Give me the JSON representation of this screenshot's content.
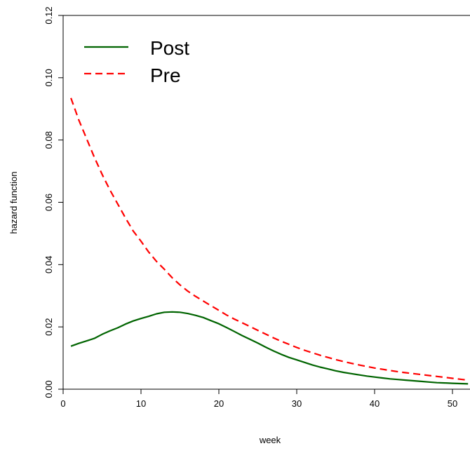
{
  "chart_data": {
    "type": "line",
    "title": "",
    "xlabel": "week",
    "ylabel": "hazard function",
    "xlim": [
      0,
      52
    ],
    "ylim": [
      0,
      0.12
    ],
    "x_ticks": [
      0,
      10,
      20,
      30,
      40,
      50
    ],
    "y_ticks": [
      0.0,
      0.02,
      0.04,
      0.06,
      0.08,
      0.1,
      0.12
    ],
    "x_tick_labels": [
      "0",
      "10",
      "20",
      "30",
      "40",
      "50"
    ],
    "y_tick_labels": [
      "0.00",
      "0.02",
      "0.04",
      "0.06",
      "0.08",
      "0.10",
      "0.12"
    ],
    "grid": false,
    "legend_position": "top-left",
    "series": [
      {
        "name": "Post",
        "color": "#006400",
        "line_style": "solid",
        "x": [
          1,
          2,
          3,
          4,
          5,
          6,
          7,
          8,
          9,
          10,
          11,
          12,
          13,
          14,
          15,
          16,
          17,
          18,
          19,
          20,
          21,
          22,
          23,
          24,
          25,
          26,
          27,
          28,
          29,
          30,
          31,
          32,
          33,
          34,
          35,
          36,
          37,
          38,
          39,
          40,
          41,
          42,
          43,
          44,
          45,
          46,
          47,
          48,
          49,
          50,
          51,
          52
        ],
        "y": [
          0.0138,
          0.0147,
          0.0155,
          0.0163,
          0.0176,
          0.0187,
          0.0197,
          0.0209,
          0.0219,
          0.0227,
          0.0234,
          0.0242,
          0.0247,
          0.0248,
          0.0247,
          0.0243,
          0.0237,
          0.023,
          0.022,
          0.021,
          0.0198,
          0.0185,
          0.0172,
          0.016,
          0.0148,
          0.0135,
          0.0123,
          0.0112,
          0.0102,
          0.0094,
          0.0086,
          0.0078,
          0.0071,
          0.0065,
          0.0059,
          0.0054,
          0.005,
          0.0046,
          0.0042,
          0.0039,
          0.0036,
          0.0033,
          0.0031,
          0.0029,
          0.0027,
          0.0025,
          0.0023,
          0.0021,
          0.002,
          0.0019,
          0.0018,
          0.0017
        ]
      },
      {
        "name": "Pre",
        "color": "#ff0000",
        "line_style": "dashed",
        "x": [
          1,
          2,
          3,
          4,
          5,
          6,
          7,
          8,
          9,
          10,
          11,
          12,
          13,
          14,
          15,
          16,
          17,
          18,
          19,
          20,
          21,
          22,
          23,
          24,
          25,
          26,
          27,
          28,
          29,
          30,
          31,
          32,
          33,
          34,
          35,
          36,
          37,
          38,
          39,
          40,
          41,
          42,
          43,
          44,
          45,
          46,
          47,
          48,
          49,
          50,
          51,
          52
        ],
        "y": [
          0.0935,
          0.0865,
          0.0805,
          0.0745,
          0.069,
          0.064,
          0.0595,
          0.055,
          0.0508,
          0.0475,
          0.044,
          0.041,
          0.0385,
          0.0358,
          0.0335,
          0.0315,
          0.0298,
          0.0283,
          0.0268,
          0.0253,
          0.0238,
          0.0225,
          0.0213,
          0.0201,
          0.0189,
          0.0177,
          0.0165,
          0.0154,
          0.0144,
          0.0134,
          0.0125,
          0.0117,
          0.0109,
          0.0102,
          0.0095,
          0.0089,
          0.0083,
          0.0078,
          0.0073,
          0.0068,
          0.0064,
          0.006,
          0.0056,
          0.0053,
          0.005,
          0.0047,
          0.0044,
          0.0041,
          0.0038,
          0.0035,
          0.0032,
          0.0029
        ]
      }
    ]
  }
}
